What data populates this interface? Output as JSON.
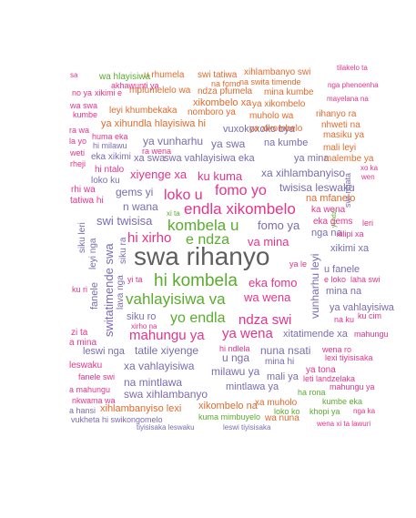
{
  "word_cloud": {
    "words": [
      {
        "text": "swa rihanyo",
        "color": "#5f5f5f"
      },
      {
        "text": "hi kombela",
        "color": "#5aac2e"
      },
      {
        "text": "vahlayisiwa va",
        "color": "#5aac2e"
      },
      {
        "text": "endla xikombelo",
        "color": "#e6338a"
      },
      {
        "text": "kombela u",
        "color": "#5aac2e"
      },
      {
        "text": "e ndza",
        "color": "#5aac2e"
      },
      {
        "text": "yo endla",
        "color": "#5aac2e"
      },
      {
        "text": "fomo yo",
        "color": "#e6338a"
      },
      {
        "text": "loko u",
        "color": "#e6338a"
      },
      {
        "text": "hi xirho",
        "color": "#e6338a"
      },
      {
        "text": "ndza swi",
        "color": "#e6338a"
      },
      {
        "text": "mahungu ya",
        "color": "#e6338a"
      },
      {
        "text": "ya wena",
        "color": "#e6338a"
      },
      {
        "text": "va mina",
        "color": "#e6338a"
      },
      {
        "text": "eka fomo",
        "color": "#e6338a"
      },
      {
        "text": "wa wena",
        "color": "#e6338a"
      },
      {
        "text": "swi twisisa",
        "color": "#7a6bb0"
      },
      {
        "text": "fomo ya",
        "color": "#7a6bb0"
      },
      {
        "text": "xiyenge xa",
        "color": "#e6338a"
      },
      {
        "text": "ku kuma",
        "color": "#e6338a"
      },
      {
        "text": "n wana",
        "color": "#7a6bb0"
      },
      {
        "text": "gems yi",
        "color": "#7a6bb0"
      },
      {
        "text": "swa vahlayisiwa eka",
        "color": "#7a6bb0"
      },
      {
        "text": "xa swa",
        "color": "#7a6bb0"
      },
      {
        "text": "xa xihlambanyiso",
        "color": "#7a6bb0"
      },
      {
        "text": "ya vunharhu",
        "color": "#7a6bb0"
      },
      {
        "text": "ya swa",
        "color": "#7a6bb0"
      },
      {
        "text": "na kumbe",
        "color": "#7a6bb0"
      },
      {
        "text": "twisisa leswaku",
        "color": "#7a6bb0"
      },
      {
        "text": "na mfanelo",
        "color": "#e26a2c"
      },
      {
        "text": "ya mina",
        "color": "#7a6bb0"
      },
      {
        "text": "swa xihlambanyo",
        "color": "#7a6bb0"
      },
      {
        "text": "na mintlawa",
        "color": "#7a6bb0"
      },
      {
        "text": "xa vahlayisiwa",
        "color": "#7a6bb0"
      },
      {
        "text": "milawu ya",
        "color": "#7a6bb0"
      },
      {
        "text": "nuna nsati",
        "color": "#7a6bb0"
      },
      {
        "text": "tatile xiyenge",
        "color": "#7a6bb0"
      },
      {
        "text": "u nga",
        "color": "#7a6bb0"
      },
      {
        "text": "leswi nga",
        "color": "#7a6bb0"
      },
      {
        "text": "xitatimende xa",
        "color": "#7a6bb0"
      },
      {
        "text": "mintlawa ya",
        "color": "#7a6bb0"
      },
      {
        "text": "mali ya",
        "color": "#7a6bb0"
      },
      {
        "text": "siku ro",
        "color": "#7a6bb0"
      },
      {
        "text": "vuxokoxoko bya",
        "color": "#7a6bb0"
      },
      {
        "text": "u fanele",
        "color": "#7a6bb0"
      },
      {
        "text": "mina na",
        "color": "#7a6bb0"
      },
      {
        "text": "xikimi xa",
        "color": "#7a6bb0"
      },
      {
        "text": "nga na",
        "color": "#7a6bb0"
      },
      {
        "text": "ya vahlayisiwa",
        "color": "#7a6bb0"
      },
      {
        "text": "xikombelo na",
        "color": "#e26a2c"
      },
      {
        "text": "xihlambanyiso lexi",
        "color": "#e26a2c"
      },
      {
        "text": "xikombelo xa",
        "color": "#e26a2c"
      },
      {
        "text": "nomboro ya",
        "color": "#e26a2c"
      },
      {
        "text": "ndza pfumela",
        "color": "#e26a2c"
      },
      {
        "text": "mpfumelelo wa",
        "color": "#e26a2c"
      },
      {
        "text": "u rhumela",
        "color": "#e26a2c"
      },
      {
        "text": "swi tatiwa",
        "color": "#e26a2c"
      },
      {
        "text": "xihlambanyo swi",
        "color": "#e26a2c"
      },
      {
        "text": "na swita timende",
        "color": "#e26a2c"
      },
      {
        "text": "na fomo",
        "color": "#e26a2c"
      },
      {
        "text": "mina kumbe",
        "color": "#e26a2c"
      },
      {
        "text": "ya xikombelo",
        "color": "#e26a2c"
      },
      {
        "text": "muholo wa",
        "color": "#e26a2c"
      },
      {
        "text": "rihanyo ra",
        "color": "#e26a2c"
      },
      {
        "text": "nhweti na",
        "color": "#e26a2c"
      },
      {
        "text": "masiku ya",
        "color": "#e26a2c"
      },
      {
        "text": "mali leyi",
        "color": "#e26a2c"
      },
      {
        "text": "malembe ya",
        "color": "#e26a2c"
      },
      {
        "text": "ya xihundla hlayisiwa hi",
        "color": "#e26a2c"
      },
      {
        "text": "leyi khumbekaka",
        "color": "#e26a2c"
      },
      {
        "text": "ya xikombelo",
        "color": "#e26a2c"
      },
      {
        "text": "xa muholo",
        "color": "#e26a2c"
      },
      {
        "text": "wa nuna",
        "color": "#e26a2c"
      },
      {
        "text": "kumbe eka",
        "color": "#5aac2e"
      },
      {
        "text": "khopi ya",
        "color": "#5aac2e"
      },
      {
        "text": "ha rona",
        "color": "#5aac2e"
      },
      {
        "text": "kuma mimbuyelo",
        "color": "#5aac2e"
      },
      {
        "text": "loko ko",
        "color": "#5aac2e"
      },
      {
        "text": "wa hlayisiwa",
        "color": "#5aac2e"
      },
      {
        "text": "ya tona",
        "color": "#e6338a"
      },
      {
        "text": "leti landzelaka",
        "color": "#e6338a"
      },
      {
        "text": "lexi tiyisisaka",
        "color": "#e6338a"
      },
      {
        "text": "wena ro",
        "color": "#e6338a"
      },
      {
        "text": "mahungu ya",
        "color": "#e6338a"
      },
      {
        "text": "nkwama wa",
        "color": "#e6338a"
      },
      {
        "text": "huma eka",
        "color": "#e6338a"
      },
      {
        "text": "hi ntalo",
        "color": "#e6338a"
      },
      {
        "text": "loko ku",
        "color": "#7a6bb0"
      },
      {
        "text": "eka xikimi",
        "color": "#7a6bb0"
      },
      {
        "text": "hi milawu",
        "color": "#7a6bb0"
      },
      {
        "text": "ra wena",
        "color": "#e6338a"
      },
      {
        "text": "swi ngata",
        "color": "#7a6bb0"
      },
      {
        "text": "ka wena",
        "color": "#e6338a"
      },
      {
        "text": "eka gems",
        "color": "#e6338a"
      },
      {
        "text": "xilipi xa",
        "color": "#e6338a"
      },
      {
        "text": "leri",
        "color": "#e6338a"
      },
      {
        "text": "na ku",
        "color": "#e6338a"
      },
      {
        "text": "ku cim",
        "color": "#e6338a"
      },
      {
        "text": "hi ndlela",
        "color": "#e6338a"
      },
      {
        "text": "mina hi",
        "color": "#7a6bb0"
      },
      {
        "text": "hi switatimende swa",
        "color": "#e6338a"
      },
      {
        "text": "switatimende swa",
        "color": "#7a6bb0"
      },
      {
        "text": "vunharhu leyi",
        "color": "#7a6bb0"
      },
      {
        "text": "siku leri",
        "color": "#7a6bb0"
      },
      {
        "text": "fanele",
        "color": "#7a6bb0"
      },
      {
        "text": "leyi nga",
        "color": "#7a6bb0"
      },
      {
        "text": "siku ra",
        "color": "#7a6bb0"
      },
      {
        "text": "lava nga",
        "color": "#7a6bb0"
      },
      {
        "text": "zi ta",
        "color": "#e6338a"
      },
      {
        "text": "a mina",
        "color": "#e6338a"
      },
      {
        "text": "leswaku",
        "color": "#e6338a"
      },
      {
        "text": "fanele swi",
        "color": "#e6338a"
      },
      {
        "text": "a mahungu",
        "color": "#e6338a"
      },
      {
        "text": "ya le",
        "color": "#e6338a"
      },
      {
        "text": "e loko",
        "color": "#e6338a"
      },
      {
        "text": "laha swi",
        "color": "#e6338a"
      },
      {
        "text": "mahungu",
        "color": "#e6338a"
      },
      {
        "text": "wena xi ta lawuri",
        "color": "#e6338a"
      },
      {
        "text": "nga ka",
        "color": "#e6338a"
      },
      {
        "text": "tiyisisaka leswaku",
        "color": "#7a6bb0"
      },
      {
        "text": "leswi tiyisisaka",
        "color": "#7a6bb0"
      },
      {
        "text": "vukheta hi swikongomelo",
        "color": "#7a6bb0"
      },
      {
        "text": "a hansi",
        "color": "#7a6bb0"
      },
      {
        "text": "akhawunti ya",
        "color": "#e6338a"
      },
      {
        "text": "xikimi e",
        "color": "#e6338a"
      },
      {
        "text": "no ya",
        "color": "#e6338a"
      },
      {
        "text": "kumbe",
        "color": "#e6338a"
      },
      {
        "text": "la yo",
        "color": "#e6338a"
      },
      {
        "text": "nga phenoenha",
        "color": "#e6338a"
      },
      {
        "text": "mayelana na",
        "color": "#e6338a"
      },
      {
        "text": "wa swa",
        "color": "#e6338a"
      },
      {
        "text": "xo ka",
        "color": "#e6338a"
      },
      {
        "text": "wen",
        "color": "#e6338a"
      },
      {
        "text": "ra wa",
        "color": "#e6338a"
      },
      {
        "text": "tilakelo ta",
        "color": "#e6338a"
      },
      {
        "text": "sa",
        "color": "#e6338a"
      },
      {
        "text": "weti",
        "color": "#e6338a"
      },
      {
        "text": "rheji",
        "color": "#e6338a"
      },
      {
        "text": "rhi wa",
        "color": "#e6338a"
      },
      {
        "text": "tatiwa hi",
        "color": "#e6338a"
      },
      {
        "text": "ku ri",
        "color": "#e6338a"
      },
      {
        "text": "yi ta",
        "color": "#e6338a"
      },
      {
        "text": "xirho na",
        "color": "#e6338a"
      },
      {
        "text": "xi ta",
        "color": "#5aac2e"
      },
      {
        "text": "yi ndzi",
        "color": "#5aac2e"
      }
    ]
  }
}
